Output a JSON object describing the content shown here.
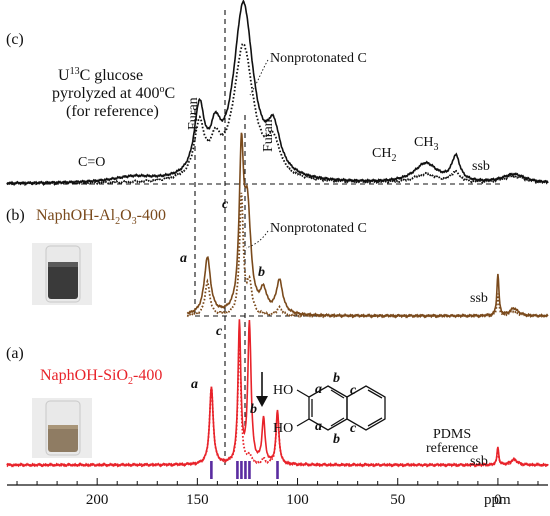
{
  "colors": {
    "c": "#111111",
    "b": "#7a4a1c",
    "a": "#e8232a",
    "stick": "#5a2ca0",
    "guide": "#111111"
  },
  "figure": {
    "xaxis": {
      "reversed": true,
      "range_ppm": [
        245,
        -25
      ],
      "ticks": [
        200,
        150,
        100,
        50,
        0
      ],
      "tick_labels": [
        "200",
        "150",
        "100",
        "50",
        "0"
      ],
      "unit_label": "ppm"
    },
    "panels": {
      "c": {
        "tag": "(c)",
        "title_parts": [
          "U",
          "13",
          "C glucose"
        ],
        "line2_parts": [
          "pyrolyzed at 400",
          "o",
          "C"
        ],
        "line3": "(for reference)",
        "labels": {
          "co": "C=O",
          "furan_left": "Furan",
          "furan_right": "Furan",
          "nonprot": "Nonprotonated C",
          "ch2": [
            "CH",
            "2"
          ],
          "ch3": [
            "CH",
            "3"
          ],
          "ssb": "ssb"
        }
      },
      "b": {
        "tag": "(b)",
        "title_parts": [
          "NaphOH-Al",
          "2",
          "O",
          "3",
          "-400"
        ],
        "labels": {
          "a": "a",
          "b": "b",
          "c": "c",
          "nonprot": "Nonprotonated C",
          "ssb": "ssb"
        }
      },
      "a": {
        "tag": "(a)",
        "title_parts": [
          "NaphOH-SiO",
          "2",
          "-400"
        ],
        "labels": {
          "a": "a",
          "b": "b",
          "c": "c",
          "pdms": [
            "PDMS",
            "reference"
          ],
          "ssb": "ssb"
        }
      }
    },
    "structure": {
      "ho_top": "HO",
      "ho_bottom": "HO",
      "a_top": "a",
      "a_bottom": "a",
      "b_top": "b",
      "b_bottom": "b",
      "c_top": "c",
      "c_bottom": "c"
    }
  },
  "chart_data": [
    {
      "type": "line",
      "panel": "c",
      "series": [
        {
          "style": "solid",
          "peaks": [
            {
              "center": 127,
              "height": 1.0,
              "width": 12
            },
            {
              "center": 149,
              "height": 0.38,
              "width": 6
            },
            {
              "center": 112,
              "height": 0.24,
              "width": 8
            },
            {
              "center": 141,
              "height": 0.2,
              "width": 6
            },
            {
              "center": 182,
              "height": 0.03,
              "width": 25
            },
            {
              "center": 36,
              "height": 0.11,
              "width": 14
            },
            {
              "center": 21,
              "height": 0.14,
              "width": 5
            },
            {
              "center": -8,
              "height": 0.05,
              "width": 14
            }
          ]
        },
        {
          "style": "dotted",
          "peaks": [
            {
              "center": 127,
              "height": 0.77,
              "width": 12
            },
            {
              "center": 149,
              "height": 0.3,
              "width": 6
            },
            {
              "center": 112,
              "height": 0.18,
              "width": 8
            },
            {
              "center": 141,
              "height": 0.16,
              "width": 6
            },
            {
              "center": 36,
              "height": 0.05,
              "width": 14
            },
            {
              "center": 21,
              "height": 0.06,
              "width": 5
            },
            {
              "center": -8,
              "height": 0.04,
              "width": 14
            }
          ]
        }
      ]
    },
    {
      "type": "line",
      "panel": "b",
      "series": [
        {
          "style": "solid",
          "peaks": [
            {
              "center": 128,
              "height": 1.0,
              "width": 2.6
            },
            {
              "center": 125,
              "height": 0.68,
              "width": 4
            },
            {
              "center": 145,
              "height": 0.38,
              "width": 3.8
            },
            {
              "center": 109,
              "height": 0.22,
              "width": 4
            },
            {
              "center": 117,
              "height": 0.14,
              "width": 4
            },
            {
              "center": 0,
              "height": 0.28,
              "width": 1.2
            },
            {
              "center": -8,
              "height": 0.05,
              "width": 5
            }
          ]
        },
        {
          "style": "dotted",
          "peaks": [
            {
              "center": 128,
              "height": 0.8,
              "width": 2.2
            },
            {
              "center": 145,
              "height": 0.22,
              "width": 3
            },
            {
              "center": 124,
              "height": 0.2,
              "width": 3
            },
            {
              "center": 109,
              "height": 0.05,
              "width": 3
            },
            {
              "center": 0,
              "height": 0.14,
              "width": 1.2
            },
            {
              "center": -8,
              "height": 0.03,
              "width": 5
            }
          ]
        }
      ]
    },
    {
      "type": "line",
      "panel": "a",
      "series": [
        {
          "style": "solid",
          "peaks": [
            {
              "center": 129,
              "height": 1.0,
              "width": 1.7
            },
            {
              "center": 124,
              "height": 1.0,
              "width": 1.9
            },
            {
              "center": 143,
              "height": 0.55,
              "width": 2.2
            },
            {
              "center": 117,
              "height": 0.32,
              "width": 1.8
            },
            {
              "center": 110,
              "height": 0.38,
              "width": 1.7
            },
            {
              "center": 0,
              "height": 0.13,
              "width": 1.0
            },
            {
              "center": -8,
              "height": 0.04,
              "width": 4
            }
          ]
        },
        {
          "style": "dotted",
          "peaks": [
            {
              "center": 143,
              "height": 0.55,
              "width": 2.2
            },
            {
              "center": 129,
              "height": 0.9,
              "width": 1.8
            },
            {
              "center": 124,
              "height": 0.06,
              "width": 2
            },
            {
              "center": 117,
              "height": 0.04,
              "width": 2
            },
            {
              "center": 110,
              "height": 0.36,
              "width": 1.8
            },
            {
              "center": 0,
              "height": 0.12,
              "width": 1.0
            },
            {
              "center": -8,
              "height": 0.03,
              "width": 4
            }
          ]
        },
        {
          "style": "stick",
          "positions": [
            143,
            130,
            128,
            126,
            124,
            110
          ],
          "heights": [
            0.3,
            0.3,
            0.3,
            0.3,
            0.3,
            0.3
          ]
        }
      ]
    }
  ]
}
